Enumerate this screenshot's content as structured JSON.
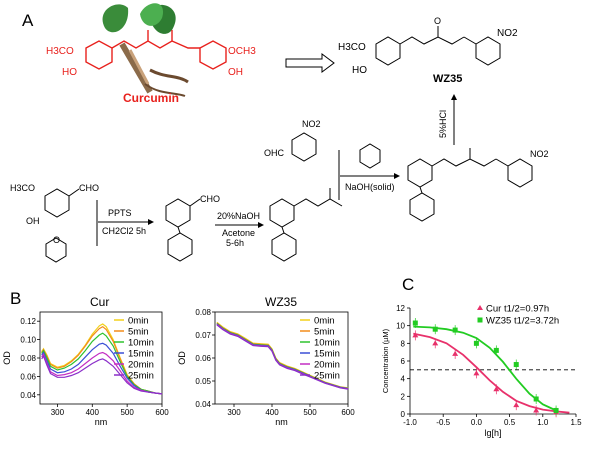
{
  "panels": {
    "a": {
      "letter": "A",
      "curcumin_name": "Curcumin",
      "curcumin_groups": {
        "left_ome": "H3CO",
        "right_ome": "OCH3",
        "left_oh": "HO",
        "right_oh": "OH"
      },
      "wz35_name": "WZ35",
      "wz35_groups": {
        "ome": "H3CO",
        "oh": "HO",
        "no2": "NO2"
      },
      "reagents": {
        "vanillin_cho": "CHO",
        "vanillin_ome": "H3CO",
        "vanillin_oh": "OH",
        "step1_top": "PPTS",
        "step1_bottom": "CH2Cl2 5h",
        "protected_cho": "CHO",
        "step2_top": "20%NaOH",
        "step2_bottom": "Acetone",
        "step2_time": "5-6h",
        "aldehyde_cho": "OHC",
        "aldehyde_no2": "NO2",
        "step3": "NaOH(solid)",
        "step4": "5%HCl",
        "intermediate_no2": "NO2"
      }
    },
    "b": {
      "letter": "B",
      "left_title": "Cur",
      "right_title": "WZ35",
      "ylabel": "OD",
      "xlabel": "nm"
    },
    "c": {
      "letter": "C",
      "ylabel": "Concentration (µM)",
      "xlabel": "lg[h]"
    }
  },
  "chart_data": [
    {
      "type": "line",
      "title": "Cur",
      "xlabel": "nm",
      "ylabel": "OD",
      "xlim": [
        250,
        600
      ],
      "ylim": [
        0.03,
        0.13
      ],
      "xticks": [
        300,
        400,
        500,
        600
      ],
      "yticks": [
        0.04,
        0.06,
        0.08,
        0.1,
        0.12
      ],
      "legend_position": "top-right",
      "x": [
        255,
        260,
        270,
        280,
        300,
        320,
        340,
        360,
        380,
        400,
        420,
        430,
        440,
        460,
        480,
        500,
        520,
        540,
        560,
        580,
        600
      ],
      "series": [
        {
          "name": "0min",
          "color": "#f2d11b",
          "values": [
            0.087,
            0.09,
            0.083,
            0.074,
            0.07,
            0.072,
            0.077,
            0.084,
            0.094,
            0.106,
            0.115,
            0.117,
            0.114,
            0.1,
            0.08,
            0.062,
            0.052,
            0.046,
            0.044,
            0.042,
            0.041
          ]
        },
        {
          "name": "5min",
          "color": "#f28c1b",
          "values": [
            0.086,
            0.089,
            0.082,
            0.073,
            0.069,
            0.071,
            0.076,
            0.083,
            0.093,
            0.104,
            0.112,
            0.114,
            0.111,
            0.098,
            0.079,
            0.061,
            0.052,
            0.046,
            0.044,
            0.042,
            0.041
          ]
        },
        {
          "name": "10min",
          "color": "#2fc22f",
          "values": [
            0.085,
            0.088,
            0.08,
            0.071,
            0.067,
            0.069,
            0.073,
            0.079,
            0.088,
            0.098,
            0.105,
            0.107,
            0.104,
            0.093,
            0.076,
            0.06,
            0.051,
            0.046,
            0.044,
            0.042,
            0.041
          ]
        },
        {
          "name": "15min",
          "color": "#3b4fd6",
          "values": [
            0.083,
            0.086,
            0.077,
            0.068,
            0.064,
            0.065,
            0.068,
            0.073,
            0.081,
            0.089,
            0.095,
            0.096,
            0.094,
            0.085,
            0.071,
            0.058,
            0.05,
            0.045,
            0.043,
            0.042,
            0.041
          ]
        },
        {
          "name": "20min",
          "color": "#c32ec3",
          "values": [
            0.081,
            0.084,
            0.074,
            0.065,
            0.061,
            0.062,
            0.064,
            0.068,
            0.074,
            0.08,
            0.085,
            0.086,
            0.084,
            0.077,
            0.066,
            0.055,
            0.048,
            0.045,
            0.043,
            0.042,
            0.041
          ]
        },
        {
          "name": "25min",
          "color": "#8b2fc9",
          "values": [
            0.079,
            0.082,
            0.072,
            0.063,
            0.059,
            0.059,
            0.061,
            0.064,
            0.069,
            0.074,
            0.078,
            0.079,
            0.077,
            0.071,
            0.062,
            0.053,
            0.047,
            0.044,
            0.043,
            0.042,
            0.041
          ]
        }
      ]
    },
    {
      "type": "line",
      "title": "WZ35",
      "xlabel": "nm",
      "ylabel": "OD",
      "xlim": [
        250,
        600
      ],
      "ylim": [
        0.04,
        0.08
      ],
      "xticks": [
        300,
        400,
        500,
        600
      ],
      "yticks": [
        0.04,
        0.05,
        0.06,
        0.07,
        0.08
      ],
      "legend_position": "top-right",
      "x": [
        255,
        270,
        290,
        310,
        330,
        350,
        370,
        390,
        400,
        410,
        420,
        440,
        460,
        480,
        500,
        520,
        540,
        560,
        580,
        600
      ],
      "series": [
        {
          "name": "0min",
          "color": "#f2d11b",
          "values": [
            0.0755,
            0.0735,
            0.0715,
            0.0705,
            0.0685,
            0.0665,
            0.0662,
            0.066,
            0.064,
            0.06,
            0.058,
            0.0565,
            0.0555,
            0.054,
            0.0525,
            0.051,
            0.0495,
            0.0485,
            0.0475,
            0.047
          ]
        },
        {
          "name": "5min",
          "color": "#f28c1b",
          "values": [
            0.0752,
            0.0732,
            0.0712,
            0.0702,
            0.0682,
            0.0662,
            0.0659,
            0.0657,
            0.0637,
            0.0598,
            0.0578,
            0.0563,
            0.0553,
            0.0538,
            0.0523,
            0.0508,
            0.0494,
            0.0484,
            0.0474,
            0.0469
          ]
        },
        {
          "name": "10min",
          "color": "#2fc22f",
          "values": [
            0.075,
            0.073,
            0.071,
            0.07,
            0.068,
            0.066,
            0.0657,
            0.0655,
            0.0635,
            0.0596,
            0.0576,
            0.0561,
            0.0551,
            0.0537,
            0.0522,
            0.0507,
            0.0493,
            0.0483,
            0.0473,
            0.0468
          ]
        },
        {
          "name": "15min",
          "color": "#3b4fd6",
          "values": [
            0.0748,
            0.0728,
            0.0708,
            0.0698,
            0.0678,
            0.0658,
            0.0655,
            0.0653,
            0.0633,
            0.0594,
            0.0574,
            0.0559,
            0.0549,
            0.0535,
            0.052,
            0.0506,
            0.0492,
            0.0482,
            0.0472,
            0.0467
          ]
        },
        {
          "name": "20min",
          "color": "#c32ec3",
          "values": [
            0.0746,
            0.0726,
            0.0706,
            0.0696,
            0.0676,
            0.0656,
            0.0653,
            0.0651,
            0.0631,
            0.0592,
            0.0572,
            0.0557,
            0.0547,
            0.0533,
            0.0519,
            0.0505,
            0.0491,
            0.0481,
            0.0471,
            0.0466
          ]
        },
        {
          "name": "25min",
          "color": "#8b2fc9",
          "values": [
            0.0744,
            0.0724,
            0.0704,
            0.0694,
            0.0674,
            0.0654,
            0.0651,
            0.0649,
            0.0629,
            0.059,
            0.057,
            0.0555,
            0.0545,
            0.0531,
            0.0518,
            0.0504,
            0.049,
            0.048,
            0.047,
            0.0465
          ]
        }
      ]
    },
    {
      "type": "scatter",
      "xlabel": "lg[h]",
      "ylabel": "Concentration (µM)",
      "xlim": [
        -1.0,
        1.5
      ],
      "ylim": [
        0,
        12
      ],
      "xticks": [
        -1.0,
        -0.5,
        0.0,
        0.5,
        1.0,
        1.5
      ],
      "xtick_labels": [
        "-1.0",
        "-0.5",
        "0.0",
        "0.5",
        "1.0",
        "1.5"
      ],
      "yticks": [
        0,
        2,
        4,
        6,
        8,
        10,
        12
      ],
      "legend_position": "top-right",
      "reference_line_y": 5.0,
      "series": [
        {
          "name": "Cur t1/2=0.97h",
          "color": "#e8316b",
          "marker": "triangle",
          "x": [
            -0.92,
            -0.62,
            -0.32,
            0.0,
            0.3,
            0.6,
            0.9,
            1.2
          ],
          "y": [
            8.9,
            8.0,
            6.8,
            4.6,
            2.8,
            1.0,
            0.4,
            0.2
          ],
          "fit_x": [
            -0.95,
            -0.7,
            -0.45,
            -0.2,
            0.0,
            0.2,
            0.4,
            0.6,
            0.8,
            1.0,
            1.2,
            1.4
          ],
          "fit_y": [
            9.1,
            8.7,
            8.0,
            6.7,
            5.3,
            3.8,
            2.5,
            1.5,
            0.9,
            0.5,
            0.3,
            0.15
          ]
        },
        {
          "name": "WZ35 t1/2=3.72h",
          "color": "#22cc22",
          "marker": "square",
          "x": [
            -0.92,
            -0.62,
            -0.32,
            0.0,
            0.3,
            0.6,
            0.9,
            1.2
          ],
          "y": [
            10.3,
            9.6,
            9.5,
            8.0,
            7.2,
            5.6,
            1.7,
            0.4
          ],
          "fit_x": [
            -0.95,
            -0.7,
            -0.45,
            -0.2,
            0.0,
            0.2,
            0.4,
            0.6,
            0.8,
            1.0,
            1.2
          ],
          "fit_y": [
            9.9,
            9.8,
            9.6,
            9.2,
            8.6,
            7.5,
            5.9,
            4.0,
            2.3,
            1.1,
            0.4
          ]
        }
      ]
    }
  ]
}
